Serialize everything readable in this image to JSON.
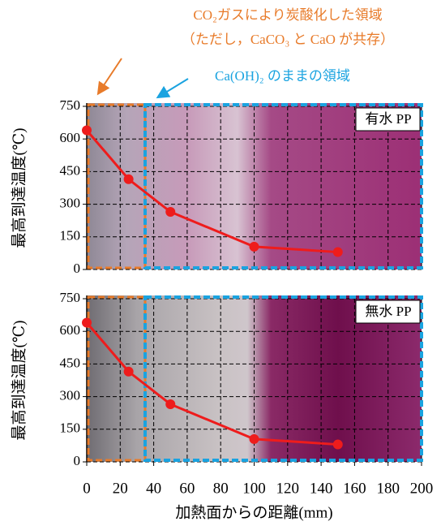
{
  "annotations": [
    "CO₂ガスにより炭酸化した領域",
    "（ただし，CaCO₃ と CaO が共存）",
    "Ca(OH)₂ のままの領域"
  ],
  "chart_data": [
    {
      "type": "line",
      "label": "有水 PP",
      "ylabel": "最高到達温度(℃)",
      "x": [
        0,
        25,
        50,
        100,
        150
      ],
      "series": [
        {
          "color": "#ee1c1c",
          "values": [
            640,
            415,
            265,
            105,
            80
          ]
        }
      ],
      "xlim": [
        0,
        200
      ],
      "xticks": [
        0,
        20,
        40,
        60,
        80,
        100,
        120,
        140,
        160,
        180,
        200
      ],
      "ylim": [
        0,
        750
      ],
      "yticks": [
        0,
        150,
        300,
        450,
        600,
        750
      ],
      "grid": true
    },
    {
      "type": "line",
      "label": "無水 PP",
      "ylabel": "最高到達温度(℃)",
      "xlabel": "加熱面からの距離(mm)",
      "x": [
        0,
        25,
        50,
        100,
        150
      ],
      "series": [
        {
          "color": "#ee1c1c",
          "values": [
            640,
            415,
            265,
            105,
            80
          ]
        }
      ],
      "xlim": [
        0,
        200
      ],
      "xticks": [
        0,
        20,
        40,
        60,
        80,
        100,
        120,
        140,
        160,
        180,
        200
      ],
      "ylim": [
        0,
        750
      ],
      "yticks": [
        0,
        150,
        300,
        450,
        600,
        750
      ],
      "grid": true
    }
  ]
}
